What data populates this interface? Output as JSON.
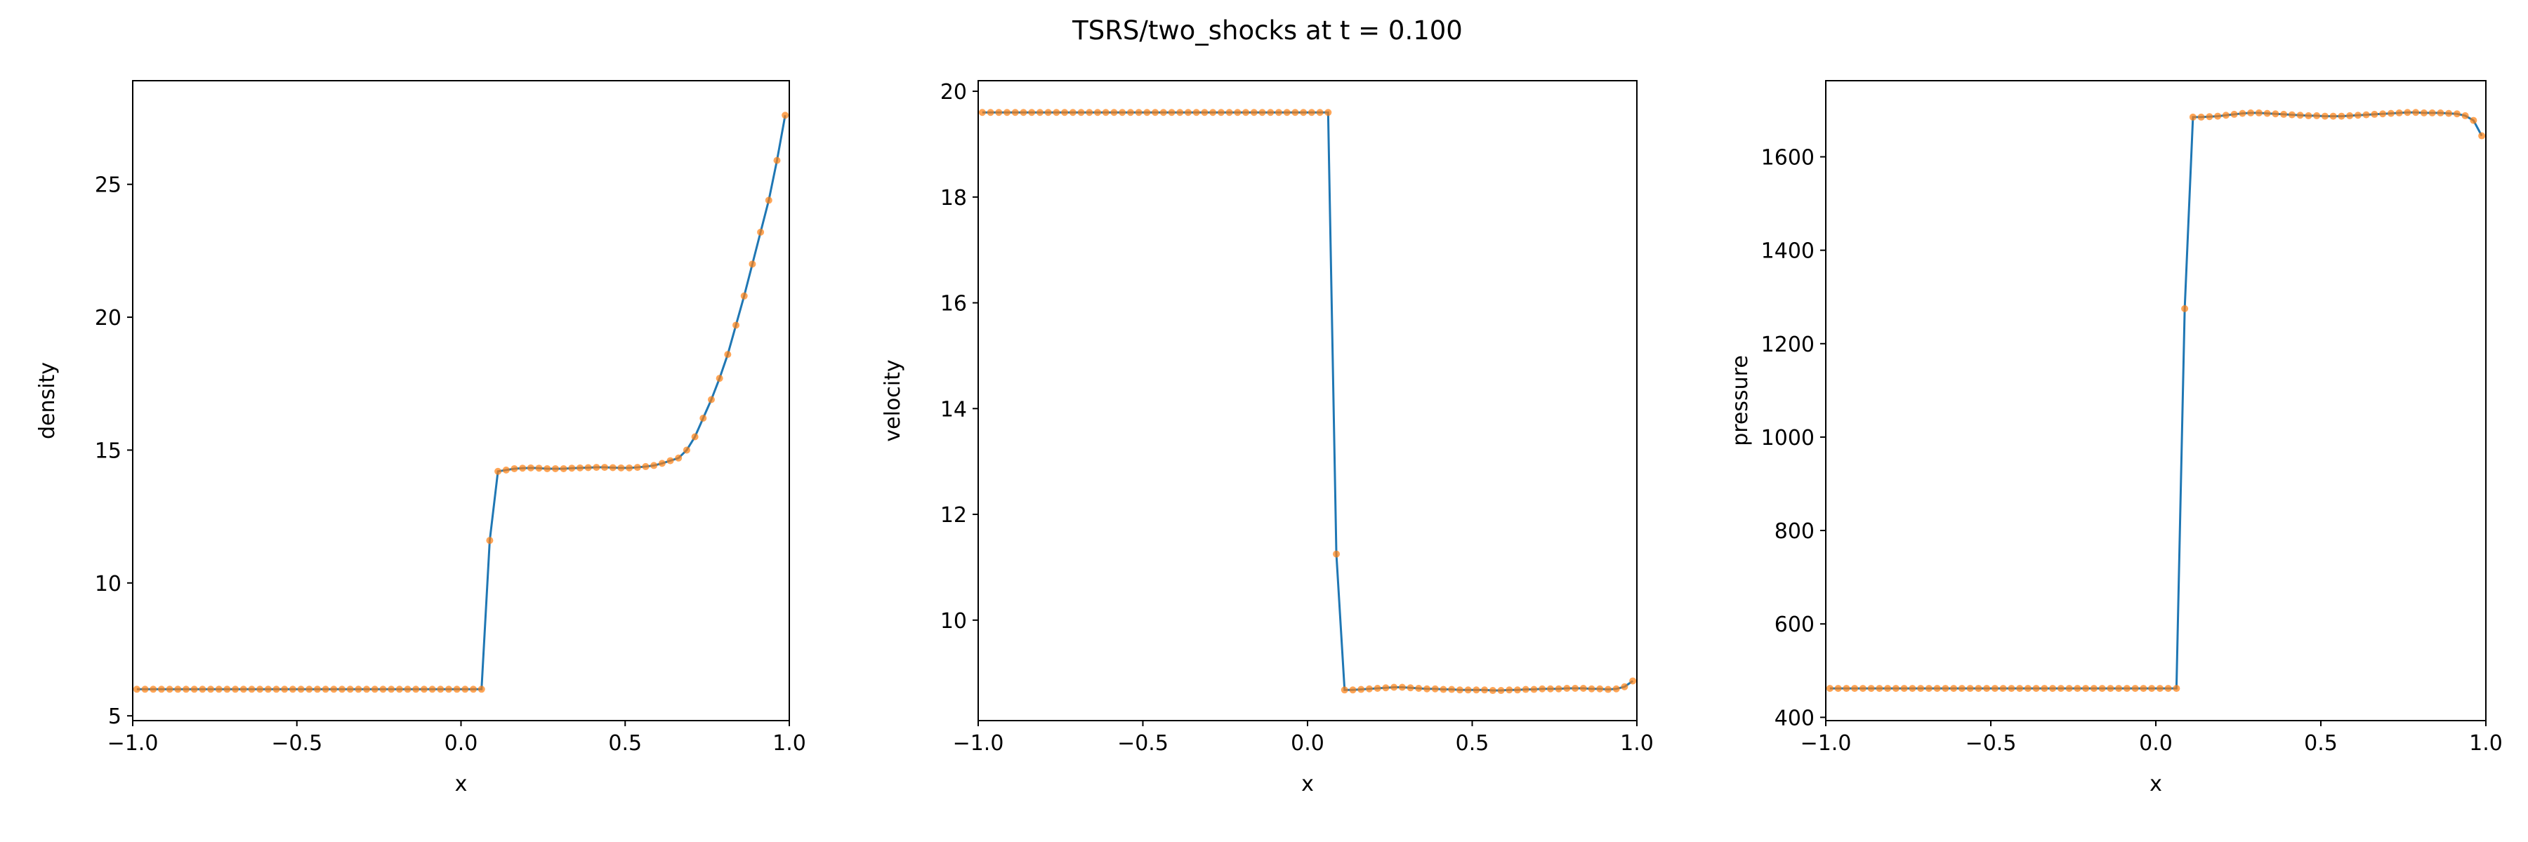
{
  "title": "TSRS/two_shocks at t = 0.100",
  "chart_data": [
    {
      "type": "line",
      "xlabel": "x",
      "ylabel": "density",
      "color": "#1f77b4",
      "marker_color": "#ff7f0e",
      "xlim": [
        -1.0,
        1.0
      ],
      "xticks": [
        {
          "value": -1.0,
          "label": "−1.0"
        },
        {
          "value": -0.5,
          "label": "−0.5"
        },
        {
          "value": 0.0,
          "label": "0.0"
        },
        0.5,
        {
          "value": 1.0,
          "label": "1.0"
        }
      ],
      "ylim": [
        4.82,
        28.9
      ],
      "yticks": [
        5,
        10,
        15,
        20,
        25
      ],
      "x": [
        -0.9875,
        -0.9625,
        -0.9375,
        -0.9125,
        -0.8875,
        -0.8625,
        -0.8375,
        -0.8125,
        -0.7875,
        -0.7625,
        -0.7375,
        -0.7125,
        -0.6875,
        -0.6625,
        -0.6375,
        -0.6125,
        -0.5875,
        -0.5625,
        -0.5375,
        -0.5125,
        -0.4875,
        -0.4625,
        -0.4375,
        -0.4125,
        -0.3875,
        -0.3625,
        -0.3375,
        -0.3125,
        -0.2875,
        -0.2625,
        -0.2375,
        -0.2125,
        -0.1875,
        -0.1625,
        -0.1375,
        -0.1125,
        -0.0875,
        -0.0625,
        -0.0375,
        -0.0125,
        0.0125,
        0.0375,
        0.0625,
        0.0875,
        0.1125,
        0.1375,
        0.1625,
        0.1875,
        0.2125,
        0.2375,
        0.2625,
        0.2875,
        0.3125,
        0.3375,
        0.3625,
        0.3875,
        0.4125,
        0.4375,
        0.4625,
        0.4875,
        0.5125,
        0.5375,
        0.5625,
        0.5875,
        0.6125,
        0.6375,
        0.6625,
        0.6875,
        0.7125,
        0.7375,
        0.7625,
        0.7875,
        0.8125,
        0.8375,
        0.8625,
        0.8875,
        0.9125,
        0.9375,
        0.9625,
        0.9875
      ],
      "values": [
        6.0,
        6.0,
        6.0,
        6.0,
        6.0,
        6.0,
        6.0,
        6.0,
        6.0,
        6.0,
        6.0,
        6.0,
        6.0,
        6.0,
        6.0,
        6.0,
        6.0,
        6.0,
        6.0,
        6.0,
        6.0,
        6.0,
        6.0,
        6.0,
        6.0,
        6.0,
        6.0,
        6.0,
        6.0,
        6.0,
        6.0,
        6.0,
        6.0,
        6.0,
        6.0,
        6.0,
        6.0,
        6.0,
        6.0,
        6.0,
        6.0,
        6.0,
        6.0,
        11.6,
        14.2,
        14.25,
        14.3,
        14.32,
        14.33,
        14.32,
        14.3,
        14.3,
        14.3,
        14.32,
        14.33,
        14.34,
        14.35,
        14.35,
        14.34,
        14.33,
        14.33,
        14.35,
        14.38,
        14.42,
        14.5,
        14.6,
        14.7,
        15.0,
        15.5,
        16.2,
        16.9,
        17.7,
        18.6,
        19.7,
        20.8,
        22.0,
        23.2,
        24.4,
        25.9,
        27.6
      ]
    },
    {
      "type": "line",
      "xlabel": "x",
      "ylabel": "velocity",
      "color": "#1f77b4",
      "marker_color": "#ff7f0e",
      "xlim": [
        -1.0,
        1.0
      ],
      "xticks": [
        {
          "value": -1.0,
          "label": "−1.0"
        },
        {
          "value": -0.5,
          "label": "−0.5"
        },
        {
          "value": 0.0,
          "label": "0.0"
        },
        0.5,
        {
          "value": 1.0,
          "label": "1.0"
        }
      ],
      "ylim": [
        8.1,
        20.2
      ],
      "yticks": [
        10,
        12,
        14,
        16,
        18,
        20
      ],
      "x": [
        -0.9875,
        -0.9625,
        -0.9375,
        -0.9125,
        -0.8875,
        -0.8625,
        -0.8375,
        -0.8125,
        -0.7875,
        -0.7625,
        -0.7375,
        -0.7125,
        -0.6875,
        -0.6625,
        -0.6375,
        -0.6125,
        -0.5875,
        -0.5625,
        -0.5375,
        -0.5125,
        -0.4875,
        -0.4625,
        -0.4375,
        -0.4125,
        -0.3875,
        -0.3625,
        -0.3375,
        -0.3125,
        -0.2875,
        -0.2625,
        -0.2375,
        -0.2125,
        -0.1875,
        -0.1625,
        -0.1375,
        -0.1125,
        -0.0875,
        -0.0625,
        -0.0375,
        -0.0125,
        0.0125,
        0.0375,
        0.0625,
        0.0875,
        0.1125,
        0.1375,
        0.1625,
        0.1875,
        0.2125,
        0.2375,
        0.2625,
        0.2875,
        0.3125,
        0.3375,
        0.3625,
        0.3875,
        0.4125,
        0.4375,
        0.4625,
        0.4875,
        0.5125,
        0.5375,
        0.5625,
        0.5875,
        0.6125,
        0.6375,
        0.6625,
        0.6875,
        0.7125,
        0.7375,
        0.7625,
        0.7875,
        0.8125,
        0.8375,
        0.8625,
        0.8875,
        0.9125,
        0.9375,
        0.9625,
        0.9875
      ],
      "values": [
        19.6,
        19.6,
        19.6,
        19.6,
        19.6,
        19.6,
        19.6,
        19.6,
        19.6,
        19.6,
        19.6,
        19.6,
        19.6,
        19.6,
        19.6,
        19.6,
        19.6,
        19.6,
        19.6,
        19.6,
        19.6,
        19.6,
        19.6,
        19.6,
        19.6,
        19.6,
        19.6,
        19.6,
        19.6,
        19.6,
        19.6,
        19.6,
        19.6,
        19.6,
        19.6,
        19.6,
        19.6,
        19.6,
        19.6,
        19.6,
        19.6,
        19.6,
        19.6,
        11.25,
        8.68,
        8.68,
        8.69,
        8.7,
        8.71,
        8.72,
        8.73,
        8.73,
        8.72,
        8.71,
        8.7,
        8.7,
        8.69,
        8.69,
        8.68,
        8.68,
        8.68,
        8.68,
        8.67,
        8.67,
        8.68,
        8.68,
        8.69,
        8.69,
        8.7,
        8.7,
        8.7,
        8.71,
        8.71,
        8.71,
        8.7,
        8.7,
        8.69,
        8.7,
        8.74,
        8.85
      ]
    },
    {
      "type": "line",
      "xlabel": "x",
      "ylabel": "pressure",
      "color": "#1f77b4",
      "marker_color": "#ff7f0e",
      "xlim": [
        -1.0,
        1.0
      ],
      "xticks": [
        {
          "value": -1.0,
          "label": "−1.0"
        },
        {
          "value": -0.5,
          "label": "−0.5"
        },
        {
          "value": 0.0,
          "label": "0.0"
        },
        0.5,
        {
          "value": 1.0,
          "label": "1.0"
        }
      ],
      "ylim": [
        393,
        1763
      ],
      "yticks": [
        400,
        600,
        800,
        1000,
        1200,
        1400,
        1600
      ],
      "x": [
        -0.9875,
        -0.9625,
        -0.9375,
        -0.9125,
        -0.8875,
        -0.8625,
        -0.8375,
        -0.8125,
        -0.7875,
        -0.7625,
        -0.7375,
        -0.7125,
        -0.6875,
        -0.6625,
        -0.6375,
        -0.6125,
        -0.5875,
        -0.5625,
        -0.5375,
        -0.5125,
        -0.4875,
        -0.4625,
        -0.4375,
        -0.4125,
        -0.3875,
        -0.3625,
        -0.3375,
        -0.3125,
        -0.2875,
        -0.2625,
        -0.2375,
        -0.2125,
        -0.1875,
        -0.1625,
        -0.1375,
        -0.1125,
        -0.0875,
        -0.0625,
        -0.0375,
        -0.0125,
        0.0125,
        0.0375,
        0.0625,
        0.0875,
        0.1125,
        0.1375,
        0.1625,
        0.1875,
        0.2125,
        0.2375,
        0.2625,
        0.2875,
        0.3125,
        0.3375,
        0.3625,
        0.3875,
        0.4125,
        0.4375,
        0.4625,
        0.4875,
        0.5125,
        0.5375,
        0.5625,
        0.5875,
        0.6125,
        0.6375,
        0.6625,
        0.6875,
        0.7125,
        0.7375,
        0.7625,
        0.7875,
        0.8125,
        0.8375,
        0.8625,
        0.8875,
        0.9125,
        0.9375,
        0.9625,
        0.9875
      ],
      "values": [
        462,
        462,
        462,
        462,
        462,
        462,
        462,
        462,
        462,
        462,
        462,
        462,
        462,
        462,
        462,
        462,
        462,
        462,
        462,
        462,
        462,
        462,
        462,
        462,
        462,
        462,
        462,
        462,
        462,
        462,
        462,
        462,
        462,
        462,
        462,
        462,
        462,
        462,
        462,
        462,
        462,
        462,
        462,
        1275,
        1685,
        1685,
        1686,
        1687,
        1689,
        1691,
        1693,
        1694,
        1694,
        1693,
        1692,
        1691,
        1690,
        1689,
        1688,
        1688,
        1687,
        1687,
        1687,
        1688,
        1689,
        1690,
        1691,
        1692,
        1693,
        1694,
        1695,
        1695,
        1694,
        1694,
        1694,
        1693,
        1692,
        1688,
        1678,
        1645
      ]
    }
  ]
}
